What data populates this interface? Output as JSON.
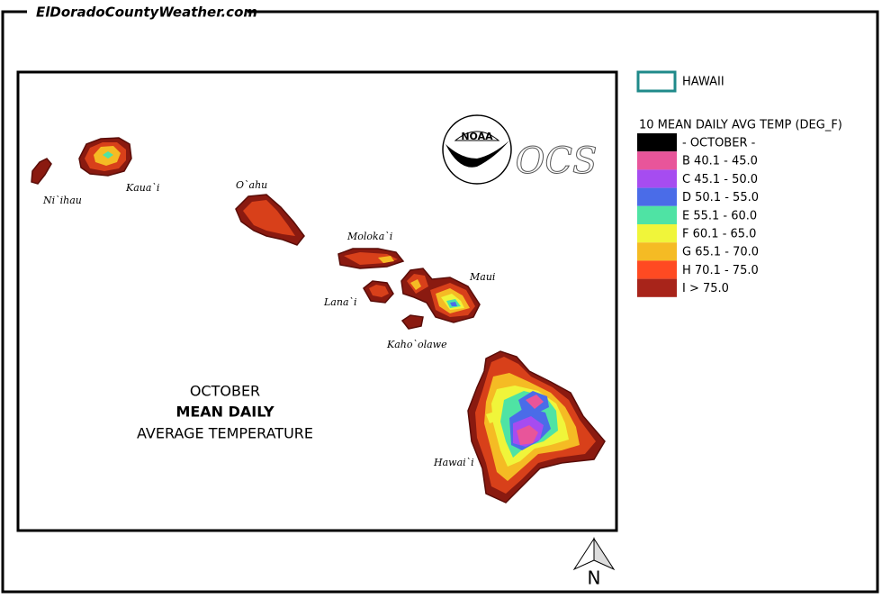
{
  "site": "ElDoradoCountyWeather.com",
  "map": {
    "title_lines": [
      "OCTOBER",
      "MEAN DAILY",
      "AVERAGE TEMPERATURE"
    ],
    "islands": [
      "Ni`ihau",
      "Kaua`i",
      "O`ahu",
      "Moloka`i",
      "Lana`i",
      "Maui",
      "Kaho`olawe",
      "Hawai`i"
    ],
    "logo": "NOAA",
    "office": "OCS",
    "north": "N"
  },
  "legend": {
    "boundary": "HAWAII",
    "title": "10 MEAN DAILY AVG TEMP (DEG_F)",
    "items": [
      {
        "label": "- OCTOBER -",
        "color": "#000000"
      },
      {
        "label": "B 40.1 - 45.0",
        "color": "#e8559a"
      },
      {
        "label": "C 45.1 - 50.0",
        "color": "#a64cf0"
      },
      {
        "label": "D 50.1 - 55.0",
        "color": "#4a6ce8"
      },
      {
        "label": "E 55.1 - 60.0",
        "color": "#4fe3a4"
      },
      {
        "label": "F 60.1 - 65.0",
        "color": "#f0f53a"
      },
      {
        "label": "G 65.1 - 70.0",
        "color": "#f5bb24"
      },
      {
        "label": "H 70.1 - 75.0",
        "color": "#ff4a22"
      },
      {
        "label": "I > 75.0",
        "color": "#a8241a"
      }
    ]
  }
}
